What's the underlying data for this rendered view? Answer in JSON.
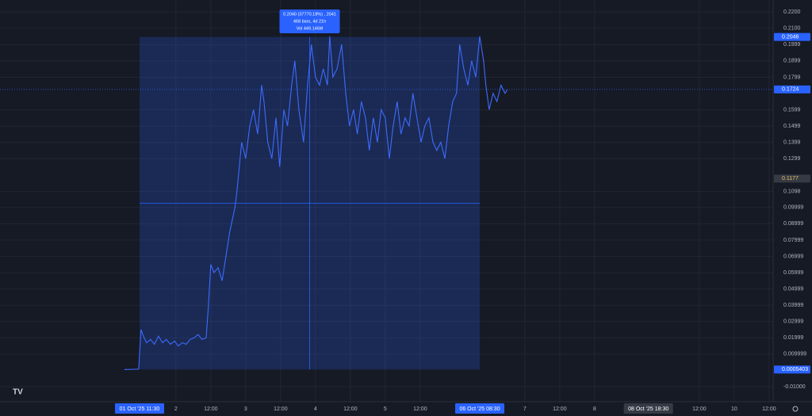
{
  "chart_data": {
    "type": "line",
    "x": [
      6.3,
      9.8,
      11.2,
      12.0,
      12.8,
      13.9,
      15.3,
      16.6,
      18.0,
      19.4,
      20.7,
      22.1,
      23.5,
      24.8,
      26.2,
      27.5,
      28.9,
      30.3,
      31.6,
      33.0,
      34.4,
      35.2,
      36.0,
      37.1,
      38.5,
      39.9,
      41.2,
      42.5,
      44.3,
      45.0,
      45.8,
      46.6,
      48.0,
      49.4,
      50.7,
      52.1,
      53.5,
      54.3,
      55.6,
      57.0,
      58.4,
      59.7,
      61.1,
      62.4,
      63.8,
      64.9,
      66.3,
      67.9,
      69.3,
      70.6,
      72.0,
      73.4,
      74.7,
      76.1,
      76.9,
      78.0,
      79.4,
      81.0,
      82.4,
      83.7,
      85.1,
      86.4,
      87.8,
      89.2,
      90.5,
      91.9,
      93.3,
      94.6,
      96.0,
      97.4,
      98.7,
      100.1,
      101.4,
      102.8,
      104.2,
      105.5,
      106.9,
      108.3,
      109.6,
      111.0,
      112.4,
      113.7,
      115.1,
      116.5,
      117.8,
      119.2,
      120.5,
      121.6,
      123.0,
      124.4,
      125.7,
      127.1,
      128.5,
      129.8,
      130.6,
      131.7,
      133.1,
      134.4,
      135.8,
      137.2,
      138.0
    ],
    "series": [
      {
        "color": "#3d6bff",
        "values": [
          0.0005,
          0.0007,
          0.0008,
          0.025,
          0.021,
          0.017,
          0.019,
          0.016,
          0.021,
          0.017,
          0.019,
          0.016,
          0.018,
          0.015,
          0.017,
          0.016,
          0.019,
          0.02,
          0.022,
          0.019,
          0.02,
          0.04,
          0.065,
          0.06,
          0.063,
          0.055,
          0.07,
          0.085,
          0.1,
          0.11,
          0.125,
          0.14,
          0.13,
          0.15,
          0.16,
          0.145,
          0.175,
          0.165,
          0.14,
          0.13,
          0.155,
          0.125,
          0.16,
          0.15,
          0.175,
          0.19,
          0.16,
          0.14,
          0.175,
          0.2,
          0.18,
          0.175,
          0.185,
          0.175,
          0.205,
          0.18,
          0.185,
          0.2,
          0.17,
          0.15,
          0.16,
          0.145,
          0.165,
          0.155,
          0.135,
          0.155,
          0.14,
          0.16,
          0.155,
          0.13,
          0.15,
          0.165,
          0.145,
          0.155,
          0.15,
          0.17,
          0.155,
          0.14,
          0.15,
          0.155,
          0.14,
          0.135,
          0.14,
          0.13,
          0.15,
          0.165,
          0.17,
          0.2,
          0.185,
          0.175,
          0.19,
          0.18,
          0.205,
          0.19,
          0.175,
          0.16,
          0.17,
          0.165,
          0.175,
          0.17,
          0.1724
        ]
      }
    ],
    "xlim": [
      -36.5,
      229.4
    ],
    "xticks": [
      {
        "value": 24,
        "label": "2"
      },
      {
        "value": 36,
        "label": "12:00"
      },
      {
        "value": 48,
        "label": "3"
      },
      {
        "value": 60,
        "label": "12:00"
      },
      {
        "value": 72,
        "label": "4"
      },
      {
        "value": 84,
        "label": "12:00"
      },
      {
        "value": 96,
        "label": "5"
      },
      {
        "value": 108,
        "label": "12:00"
      },
      {
        "value": 144,
        "label": "7"
      },
      {
        "value": 156,
        "label": "12:00"
      },
      {
        "value": 168,
        "label": "8"
      },
      {
        "value": 204,
        "label": "12:00"
      },
      {
        "value": 216,
        "label": "10"
      },
      {
        "value": 228,
        "label": "12:00"
      }
    ],
    "ylim": [
      -0.01,
      0.22
    ],
    "yticks": [
      {
        "value": 0.22,
        "label": "0.2200"
      },
      {
        "value": 0.21,
        "label": "0.2100"
      },
      0.1999,
      0.1899,
      0.1799,
      0.1599,
      0.1499,
      0.1399,
      0.1299,
      0.1098,
      0.09999,
      0.08999,
      0.07999,
      0.06999,
      0.05999,
      0.04999,
      0.03999,
      0.02999,
      0.01999,
      0.009999,
      {
        "value": -0.01,
        "label": "-0.01000"
      }
    ],
    "grid": true,
    "last_price": 0.1724,
    "measure": {
      "from": {
        "value": 11.5,
        "label": "01 Oct '25  11:30"
      },
      "to": {
        "value": 128.5,
        "label": "06 Oct '25  08:30"
      },
      "high": 0.2046,
      "low": 0.0005403,
      "color": "#2962ff",
      "text": [
        "0.2040 (37770.18%) , 2041",
        "468 bars, 4d 21h",
        "Vol 449.146M"
      ]
    },
    "cursor": {
      "x": {
        "value": 186.5,
        "label": "08 Oct '25  18:30"
      },
      "y": 0.1177
    }
  }
}
